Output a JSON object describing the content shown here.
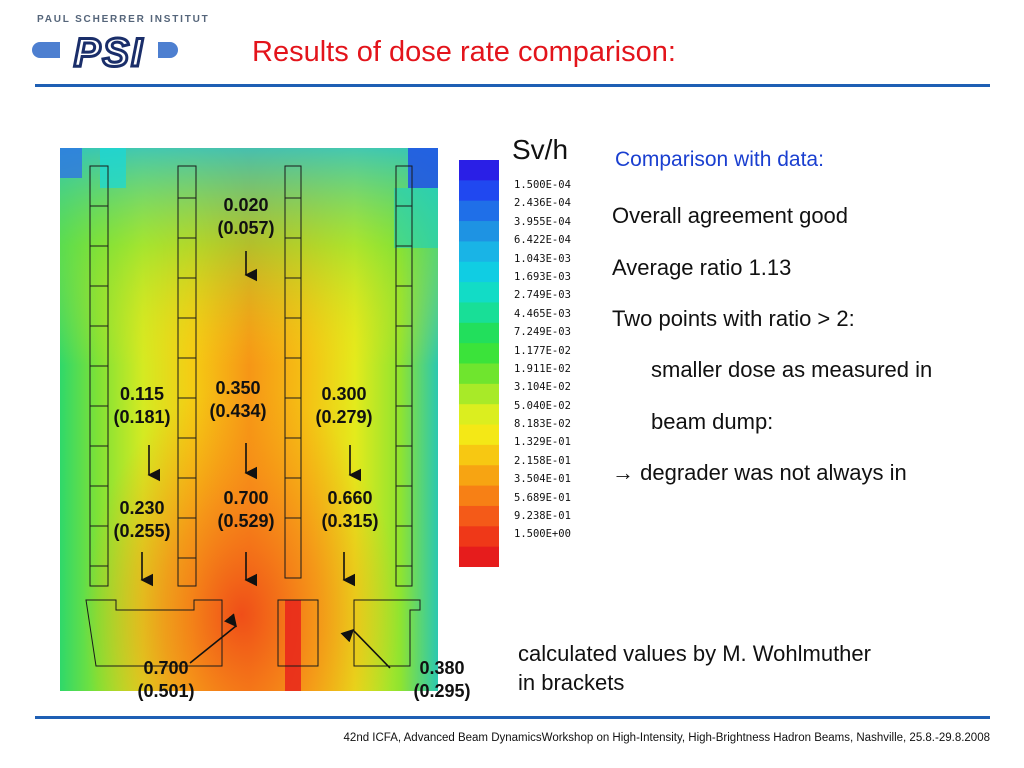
{
  "header": {
    "institute": "PAUL SCHERRER INSTITUT",
    "logo_text": "PSI",
    "title": "Results of dose rate comparison:"
  },
  "figure": {
    "points": [
      {
        "value": "0.020",
        "calc": "(0.057)"
      },
      {
        "value": "0.115",
        "calc": "(0.181)"
      },
      {
        "value": "0.350",
        "calc": "(0.434)"
      },
      {
        "value": "0.300",
        "calc": "(0.279)"
      },
      {
        "value": "0.230",
        "calc": "(0.255)"
      },
      {
        "value": "0.700",
        "calc": "(0.529)"
      },
      {
        "value": "0.660",
        "calc": "(0.315)"
      },
      {
        "value": "0.700",
        "calc": "(0.501)"
      },
      {
        "value": "0.380",
        "calc": "(0.295)"
      }
    ]
  },
  "legend": {
    "unit": "Sv/h",
    "values": [
      "1.500E-04",
      "2.436E-04",
      "3.955E-04",
      "6.422E-04",
      "1.043E-03",
      "1.693E-03",
      "2.749E-03",
      "4.465E-03",
      "7.249E-03",
      "1.177E-02",
      "1.911E-02",
      "3.104E-02",
      "5.040E-02",
      "8.183E-02",
      "1.329E-01",
      "2.158E-01",
      "3.504E-01",
      "5.689E-01",
      "9.238E-01",
      "1.500E+00"
    ],
    "colors": [
      "#2a1fe6",
      "#2048f0",
      "#1f6fe8",
      "#1e93e3",
      "#19b4e6",
      "#10cde3",
      "#12dcc6",
      "#18df97",
      "#22df5c",
      "#3be33a",
      "#6fe52e",
      "#a8ea28",
      "#dbee1f",
      "#f4e816",
      "#f7c812",
      "#f7a412",
      "#f78015",
      "#f45a18",
      "#ef3818",
      "#e61c1c"
    ]
  },
  "comparison": {
    "heading": "Comparison with data:",
    "line1": "Overall agreement good",
    "line2": "Average ratio 1.13",
    "line3": "Two points with ratio > 2:",
    "line4": "smaller dose as measured in",
    "line5": "beam dump:",
    "line6_arrow": "→",
    "line6": "degrader was not always in"
  },
  "note": {
    "line1": "calculated values by M. Wohlmuther",
    "line2": "in brackets"
  },
  "footer": {
    "text": "42nd ICFA, Advanced Beam DynamicsWorkshop on High-Intensity, High-Brightness Hadron Beams, Nashville, 25.8.-29.8.2008"
  }
}
